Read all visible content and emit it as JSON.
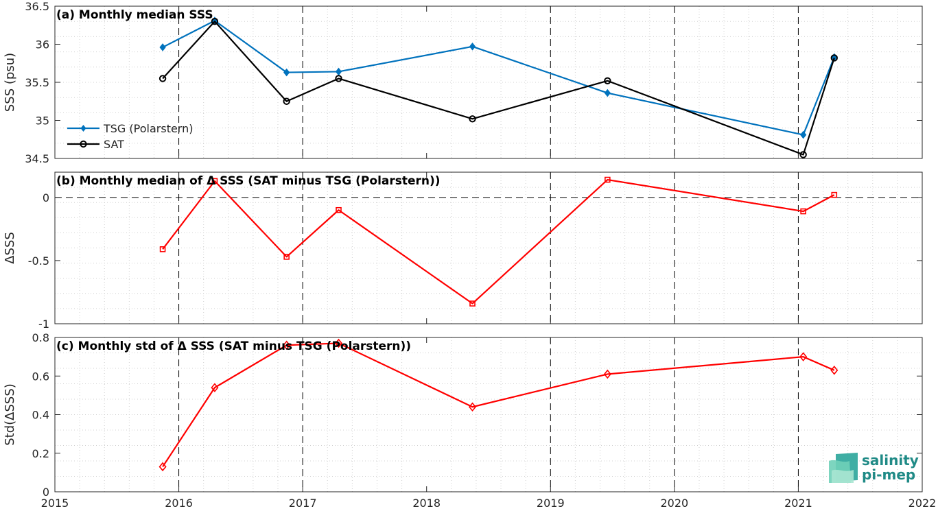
{
  "chart_data": [
    {
      "type": "line",
      "title": "(a) Monthly median SSS",
      "ylabel": "SSS (psu)",
      "xlabel": "",
      "xlim": [
        2015,
        2022
      ],
      "ylim": [
        34.5,
        36.5
      ],
      "yticks": [
        "34.5",
        "35",
        "35.5",
        "36",
        "36.5"
      ],
      "grid": "minor dotted",
      "legend": "left",
      "series": [
        {
          "name": "TSG (Polarstern)",
          "color": "#0072bd",
          "marker": "diamond-filled",
          "x": [
            2015.87,
            2016.29,
            2016.87,
            2017.29,
            2018.37,
            2019.46,
            2021.04,
            2021.29
          ],
          "y": [
            35.96,
            36.31,
            35.63,
            35.64,
            35.97,
            35.36,
            34.81,
            35.83
          ]
        },
        {
          "name": "SAT",
          "color": "#000000",
          "marker": "circle",
          "x": [
            2015.87,
            2016.29,
            2016.87,
            2017.29,
            2018.37,
            2019.46,
            2021.04,
            2021.29
          ],
          "y": [
            35.55,
            36.3,
            35.25,
            35.55,
            35.02,
            35.52,
            34.55,
            35.82
          ]
        }
      ]
    },
    {
      "type": "line",
      "title": "(b) Monthly median of Δ SSS (SAT minus TSG (Polarstern))",
      "ylabel": "ΔSSS",
      "xlabel": "",
      "xlim": [
        2015,
        2022
      ],
      "ylim": [
        -1,
        0.2
      ],
      "yticks": [
        "-1",
        "-0.5",
        "0"
      ],
      "zero_line": true,
      "series": [
        {
          "color": "#ff0000",
          "marker": "square",
          "x": [
            2015.87,
            2016.29,
            2016.87,
            2017.29,
            2018.37,
            2019.46,
            2021.04,
            2021.29
          ],
          "y": [
            -0.41,
            0.13,
            -0.47,
            -0.1,
            -0.84,
            0.14,
            -0.11,
            0.02
          ]
        }
      ]
    },
    {
      "type": "line",
      "title": "(c) Monthly std of Δ SSS (SAT minus TSG (Polarstern))",
      "ylabel": "Std(ΔSSS)",
      "xlabel": "",
      "xlim": [
        2015,
        2022
      ],
      "ylim": [
        0,
        0.8
      ],
      "yticks": [
        "0",
        "0.2",
        "0.4",
        "0.6",
        "0.8"
      ],
      "xticks": [
        "2015",
        "2016",
        "2017",
        "2018",
        "2019",
        "2020",
        "2021",
        "2022"
      ],
      "series": [
        {
          "color": "#ff0000",
          "marker": "diamond",
          "x": [
            2015.87,
            2016.29,
            2016.87,
            2017.29,
            2018.37,
            2019.46,
            2021.04,
            2021.29
          ],
          "y": [
            0.13,
            0.54,
            0.76,
            0.77,
            0.44,
            0.61,
            0.7,
            0.63
          ]
        }
      ]
    }
  ],
  "logo": {
    "line1": "salinity",
    "line2": "pi-mep"
  }
}
